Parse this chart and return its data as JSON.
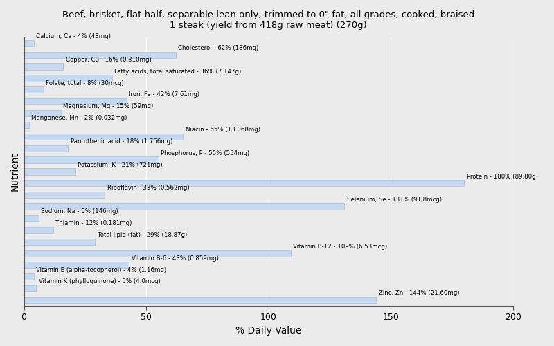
{
  "title": "Beef, brisket, flat half, separable lean only, trimmed to 0\" fat, all grades, cooked, braised\n1 steak (yield from 418g raw meat) (270g)",
  "xlabel": "% Daily Value",
  "ylabel": "Nutrient",
  "xlim": [
    0,
    200
  ],
  "xticks": [
    0,
    50,
    100,
    150,
    200
  ],
  "bar_color": "#c6d9f0",
  "bar_edge_color": "#a8c4e0",
  "background_color": "#ebebeb",
  "plot_bg_color": "#ebebeb",
  "grid_color": "#ffffff",
  "nutrients": [
    {
      "label": "Calcium, Ca - 4% (43mg)",
      "value": 4
    },
    {
      "label": "Cholesterol - 62% (186mg)",
      "value": 62
    },
    {
      "label": "Copper, Cu - 16% (0.310mg)",
      "value": 16
    },
    {
      "label": "Fatty acids, total saturated - 36% (7.147g)",
      "value": 36
    },
    {
      "label": "Folate, total - 8% (30mcg)",
      "value": 8
    },
    {
      "label": "Iron, Fe - 42% (7.61mg)",
      "value": 42
    },
    {
      "label": "Magnesium, Mg - 15% (59mg)",
      "value": 15
    },
    {
      "label": "Manganese, Mn - 2% (0.032mg)",
      "value": 2
    },
    {
      "label": "Niacin - 65% (13.068mg)",
      "value": 65
    },
    {
      "label": "Pantothenic acid - 18% (1.766mg)",
      "value": 18
    },
    {
      "label": "Phosphorus, P - 55% (554mg)",
      "value": 55
    },
    {
      "label": "Potassium, K - 21% (721mg)",
      "value": 21
    },
    {
      "label": "Protein - 180% (89.80g)",
      "value": 180
    },
    {
      "label": "Riboflavin - 33% (0.562mg)",
      "value": 33
    },
    {
      "label": "Selenium, Se - 131% (91.8mcg)",
      "value": 131
    },
    {
      "label": "Sodium, Na - 6% (146mg)",
      "value": 6
    },
    {
      "label": "Thiamin - 12% (0.181mg)",
      "value": 12
    },
    {
      "label": "Total lipid (fat) - 29% (18.87g)",
      "value": 29
    },
    {
      "label": "Vitamin B-12 - 109% (6.53mcg)",
      "value": 109
    },
    {
      "label": "Vitamin B-6 - 43% (0.859mg)",
      "value": 43
    },
    {
      "label": "Vitamin E (alpha-tocopherol) - 4% (1.16mg)",
      "value": 4
    },
    {
      "label": "Vitamin K (phylloquinone) - 5% (4.0mcg)",
      "value": 5
    },
    {
      "label": "Zinc, Zn - 144% (21.60mg)",
      "value": 144
    }
  ]
}
